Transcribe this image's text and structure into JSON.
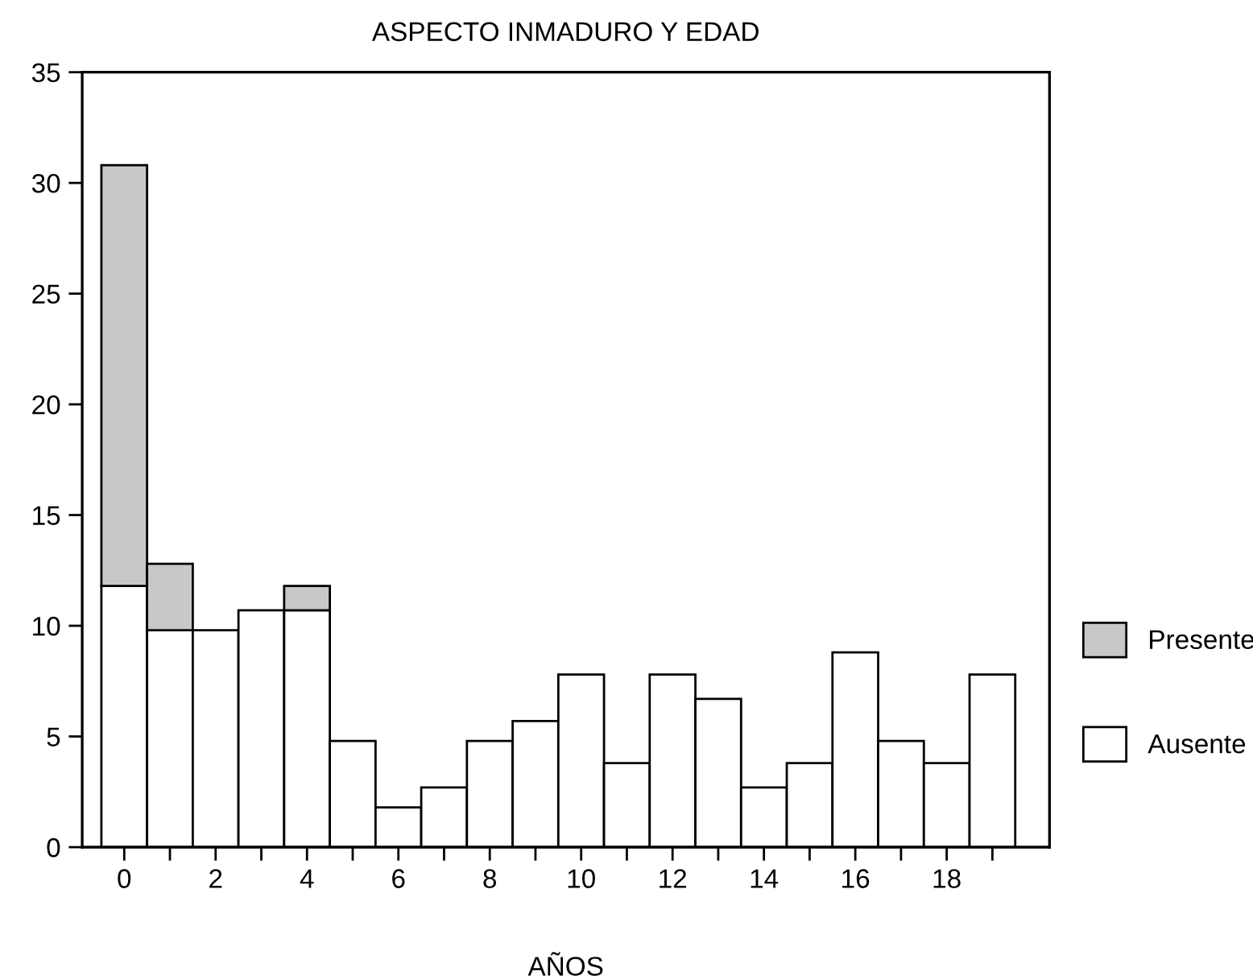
{
  "chart_data": {
    "type": "bar",
    "stacked": true,
    "title": "ASPECTO INMADURO Y EDAD",
    "xlabel": "AÑOS",
    "x": [
      0,
      1,
      2,
      3,
      4,
      5,
      6,
      7,
      8,
      9,
      10,
      11,
      12,
      13,
      14,
      15,
      16,
      17,
      18,
      19
    ],
    "series": [
      {
        "name": "Ausente",
        "color": "#ffffff",
        "values": [
          11.8,
          9.8,
          9.8,
          10.7,
          10.7,
          4.8,
          1.8,
          2.7,
          4.8,
          5.7,
          7.8,
          3.8,
          7.8,
          6.7,
          2.7,
          3.8,
          8.8,
          4.8,
          3.8,
          7.8
        ]
      },
      {
        "name": "Presente",
        "color": "#c8c8c8",
        "values": [
          19,
          3,
          null,
          null,
          1.1,
          null,
          null,
          null,
          null,
          null,
          null,
          null,
          null,
          null,
          null,
          null,
          null,
          null,
          null,
          null
        ]
      }
    ],
    "xlim": [
      -0.92,
      20.25
    ],
    "xticks": [
      0,
      {
        "value": 1,
        "label": null
      },
      2,
      {
        "value": 3,
        "label": null
      },
      4,
      {
        "value": 5,
        "label": null
      },
      6,
      {
        "value": 7,
        "label": null
      },
      8,
      {
        "value": 9,
        "label": null
      },
      10,
      {
        "value": 11,
        "label": null
      },
      12,
      {
        "value": 13,
        "label": null
      },
      14,
      {
        "value": 15,
        "label": null
      },
      16,
      {
        "value": 17,
        "label": null
      },
      18,
      {
        "value": 19,
        "label": null
      }
    ],
    "ylim": [
      0,
      35
    ],
    "yticks": [
      0,
      5,
      10,
      15,
      20,
      25,
      30,
      35
    ],
    "grid": false,
    "legend": "right"
  }
}
